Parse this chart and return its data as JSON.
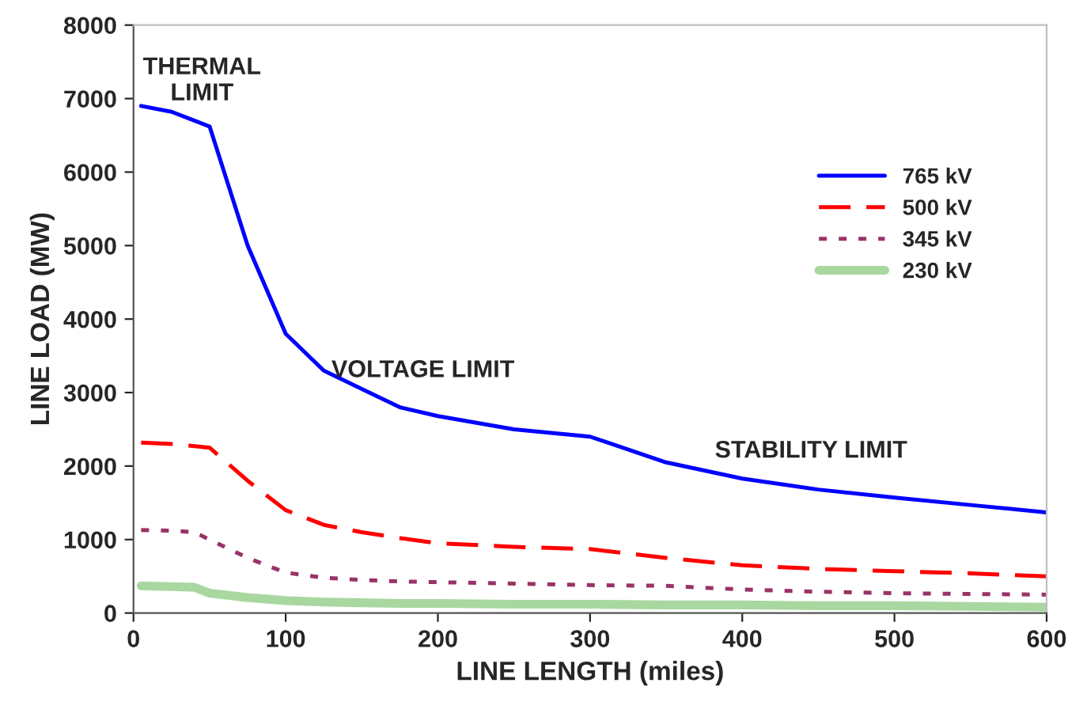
{
  "chart_data": {
    "type": "line",
    "xlabel": "LINE LENGTH (miles)",
    "ylabel": "LINE LOAD (MW)",
    "xlim": [
      0,
      600
    ],
    "xticks": [
      0,
      100,
      200,
      300,
      400,
      500,
      600
    ],
    "ylim": [
      0,
      8000
    ],
    "yticks": [
      0,
      1000,
      2000,
      3000,
      4000,
      5000,
      6000,
      7000,
      8000
    ],
    "grid": false,
    "legend": "right",
    "marker": "none",
    "x": [
      5,
      25,
      40,
      50,
      75,
      100,
      125,
      150,
      175,
      200,
      250,
      300,
      350,
      400,
      450,
      500,
      550,
      600
    ],
    "series": [
      {
        "name": "765 kV",
        "color": "#0000ff",
        "line_style": "solid",
        "values": [
          6900,
          6820,
          6700,
          6620,
          5000,
          3800,
          3300,
          3050,
          2800,
          2680,
          2500,
          2400,
          2050,
          1830,
          1680,
          1570,
          1470,
          1370
        ]
      },
      {
        "name": "500 kV",
        "color": "#ff0000",
        "line_style": "dashed",
        "values": [
          2320,
          2300,
          2270,
          2250,
          1800,
          1400,
          1200,
          1100,
          1020,
          950,
          900,
          870,
          750,
          650,
          600,
          570,
          540,
          500
        ]
      },
      {
        "name": "345 kV",
        "color": "#993366",
        "line_style": "dotted",
        "values": [
          1130,
          1120,
          1100,
          1000,
          750,
          550,
          480,
          450,
          430,
          420,
          400,
          380,
          370,
          320,
          290,
          270,
          260,
          250
        ]
      },
      {
        "name": "230 kV",
        "color": "#a8d8a0",
        "line_style": "solid",
        "values": [
          370,
          360,
          350,
          270,
          210,
          170,
          150,
          140,
          130,
          130,
          120,
          120,
          110,
          110,
          100,
          100,
          90,
          80
        ]
      }
    ],
    "annotations": [
      "THERMAL\nLIMIT",
      "VOLTAGE LIMIT",
      "STABILITY LIMIT"
    ]
  }
}
